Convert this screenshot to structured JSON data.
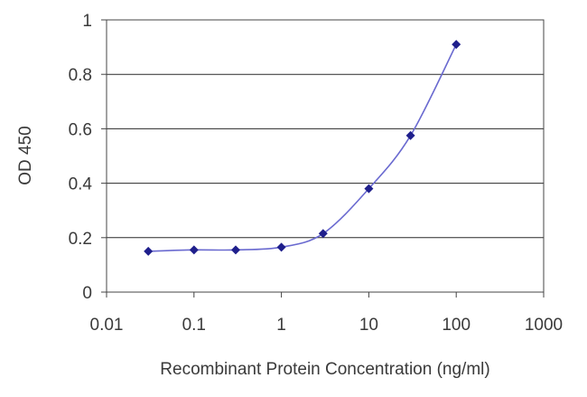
{
  "chart_data": {
    "type": "scatter",
    "title": "",
    "xlabel": "Recombinant Protein Concentration (ng/ml)",
    "ylabel": "OD 450",
    "x_scale": "log",
    "xlim": [
      0.01,
      1000
    ],
    "ylim": [
      0,
      1
    ],
    "x_ticks": [
      0.01,
      0.1,
      1,
      10,
      100,
      1000
    ],
    "x_tick_labels": [
      "0.01",
      "0.1",
      "1",
      "10",
      "100",
      "1000"
    ],
    "y_ticks": [
      0,
      0.2,
      0.4,
      0.6,
      0.8,
      1
    ],
    "y_tick_labels": [
      "0",
      "0.2",
      "0.4",
      "0.6",
      "0.8",
      "1"
    ],
    "grid": "horizontal",
    "legend": "none",
    "series": [
      {
        "x": [
          0.03,
          0.1,
          0.3,
          1,
          3,
          10,
          30,
          100
        ],
        "y": [
          0.15,
          0.155,
          0.155,
          0.165,
          0.215,
          0.38,
          0.575,
          0.91
        ],
        "marker": "diamond",
        "line": "smooth",
        "color": "#1f1f8c",
        "line_color": "#6a6ad0"
      }
    ],
    "colors": {
      "gridline": "#2a2a2a",
      "axis": "#444444"
    }
  }
}
